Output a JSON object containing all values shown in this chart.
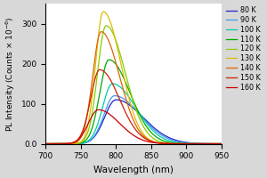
{
  "temperatures": [
    80,
    90,
    100,
    110,
    120,
    130,
    140,
    150,
    160
  ],
  "colors": [
    "#2020cc",
    "#4499ee",
    "#00ccaa",
    "#00aa00",
    "#88cc00",
    "#ddbb00",
    "#dd6600",
    "#cc2200",
    "#cc0000"
  ],
  "peak_wavelengths": [
    800,
    798,
    795,
    790,
    786,
    782,
    779,
    777,
    775
  ],
  "peak_heights": [
    110,
    120,
    150,
    210,
    295,
    330,
    280,
    185,
    85
  ],
  "sigma_left": [
    16,
    15,
    14,
    13,
    12,
    11,
    12,
    13,
    14
  ],
  "sigma_right": [
    38,
    36,
    33,
    30,
    27,
    25,
    26,
    28,
    30
  ],
  "xlabel": "Wavelength (nm)",
  "ylabel": "PL Intensity (Counts × 10$^{-6}$)",
  "xlim": [
    700,
    950
  ],
  "ylim": [
    0,
    350
  ],
  "yticks": [
    0,
    100,
    200,
    300
  ],
  "ytick_labels": [
    "0.0",
    "100",
    "200",
    "300"
  ],
  "xticks": [
    700,
    750,
    800,
    850,
    900,
    950
  ],
  "plot_bg": "#ffffff",
  "fig_bg": "#d8d8d8",
  "legend_fontsize": 5.8,
  "tick_fontsize": 6.5,
  "axis_label_fontsize": 7.5
}
